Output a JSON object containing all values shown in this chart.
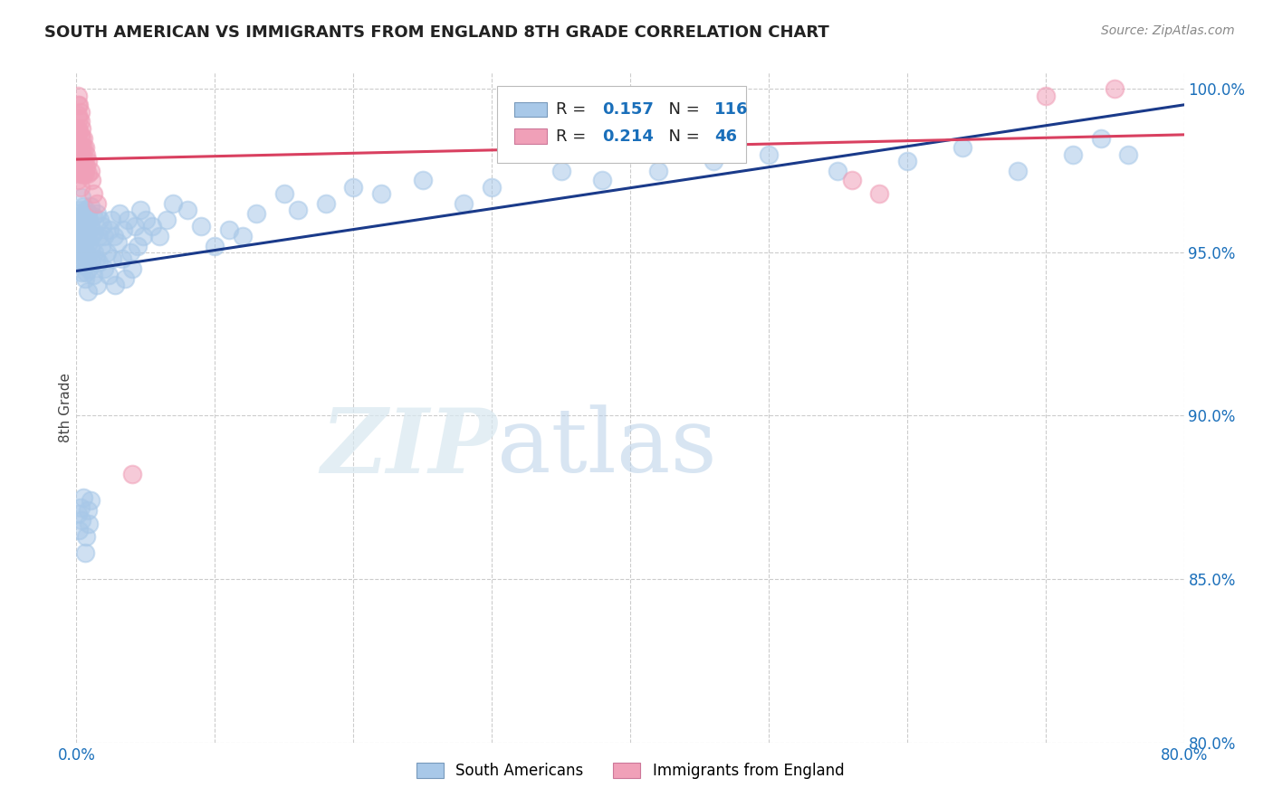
{
  "title": "SOUTH AMERICAN VS IMMIGRANTS FROM ENGLAND 8TH GRADE CORRELATION CHART",
  "source": "Source: ZipAtlas.com",
  "ylabel": "8th Grade",
  "xlim": [
    0.0,
    0.8
  ],
  "ylim": [
    0.8,
    1.005
  ],
  "x_ticks": [
    0.0,
    0.1,
    0.2,
    0.3,
    0.4,
    0.5,
    0.6,
    0.7,
    0.8
  ],
  "y_ticks": [
    0.8,
    0.85,
    0.9,
    0.95,
    1.0
  ],
  "y_tick_labels": [
    "80.0%",
    "85.0%",
    "90.0%",
    "95.0%",
    "100.0%"
  ],
  "blue_R": 0.157,
  "blue_N": 116,
  "pink_R": 0.214,
  "pink_N": 46,
  "blue_color": "#a8c8e8",
  "pink_color": "#f0a0b8",
  "blue_line_color": "#1a3a8a",
  "pink_line_color": "#d94060",
  "legend_R_color": "#1a6fba",
  "background_color": "#ffffff",
  "watermark_zip": "ZIP",
  "watermark_atlas": "atlas",
  "blue_scatter_x": [
    0.001,
    0.001,
    0.002,
    0.002,
    0.002,
    0.003,
    0.003,
    0.003,
    0.003,
    0.003,
    0.004,
    0.004,
    0.004,
    0.004,
    0.004,
    0.004,
    0.005,
    0.005,
    0.005,
    0.005,
    0.005,
    0.005,
    0.006,
    0.006,
    0.006,
    0.006,
    0.007,
    0.007,
    0.007,
    0.007,
    0.008,
    0.008,
    0.008,
    0.008,
    0.009,
    0.009,
    0.009,
    0.01,
    0.01,
    0.01,
    0.011,
    0.011,
    0.012,
    0.012,
    0.013,
    0.013,
    0.014,
    0.015,
    0.015,
    0.016,
    0.016,
    0.017,
    0.018,
    0.019,
    0.02,
    0.02,
    0.022,
    0.023,
    0.024,
    0.025,
    0.026,
    0.027,
    0.028,
    0.03,
    0.031,
    0.033,
    0.034,
    0.035,
    0.037,
    0.039,
    0.04,
    0.042,
    0.044,
    0.046,
    0.048,
    0.05,
    0.055,
    0.06,
    0.065,
    0.07,
    0.08,
    0.09,
    0.1,
    0.11,
    0.12,
    0.13,
    0.15,
    0.16,
    0.18,
    0.2,
    0.22,
    0.25,
    0.28,
    0.3,
    0.35,
    0.38,
    0.42,
    0.46,
    0.5,
    0.55,
    0.6,
    0.64,
    0.68,
    0.72,
    0.74,
    0.76,
    0.001,
    0.002,
    0.003,
    0.004,
    0.005,
    0.006,
    0.007,
    0.008,
    0.009,
    0.01
  ],
  "blue_scatter_y": [
    0.952,
    0.958,
    0.955,
    0.948,
    0.962,
    0.96,
    0.953,
    0.947,
    0.956,
    0.963,
    0.959,
    0.951,
    0.944,
    0.967,
    0.955,
    0.961,
    0.95,
    0.946,
    0.957,
    0.964,
    0.953,
    0.96,
    0.955,
    0.948,
    0.961,
    0.942,
    0.95,
    0.957,
    0.944,
    0.963,
    0.956,
    0.949,
    0.962,
    0.938,
    0.953,
    0.96,
    0.945,
    0.958,
    0.951,
    0.964,
    0.955,
    0.947,
    0.961,
    0.943,
    0.956,
    0.95,
    0.948,
    0.962,
    0.94,
    0.955,
    0.947,
    0.96,
    0.952,
    0.958,
    0.955,
    0.945,
    0.95,
    0.943,
    0.957,
    0.96,
    0.948,
    0.955,
    0.94,
    0.953,
    0.962,
    0.948,
    0.957,
    0.942,
    0.96,
    0.95,
    0.945,
    0.958,
    0.952,
    0.963,
    0.955,
    0.96,
    0.958,
    0.955,
    0.96,
    0.965,
    0.963,
    0.958,
    0.952,
    0.957,
    0.955,
    0.962,
    0.968,
    0.963,
    0.965,
    0.97,
    0.968,
    0.972,
    0.965,
    0.97,
    0.975,
    0.972,
    0.975,
    0.978,
    0.98,
    0.975,
    0.978,
    0.982,
    0.975,
    0.98,
    0.985,
    0.98,
    0.87,
    0.865,
    0.872,
    0.868,
    0.875,
    0.858,
    0.863,
    0.871,
    0.867,
    0.874
  ],
  "pink_scatter_x": [
    0.001,
    0.001,
    0.001,
    0.001,
    0.001,
    0.001,
    0.001,
    0.001,
    0.002,
    0.002,
    0.002,
    0.002,
    0.002,
    0.002,
    0.003,
    0.003,
    0.003,
    0.003,
    0.003,
    0.003,
    0.003,
    0.004,
    0.004,
    0.004,
    0.004,
    0.004,
    0.005,
    0.005,
    0.005,
    0.005,
    0.006,
    0.006,
    0.006,
    0.007,
    0.007,
    0.008,
    0.008,
    0.01,
    0.011,
    0.012,
    0.015,
    0.04,
    0.7,
    0.75,
    0.56,
    0.58
  ],
  "pink_scatter_y": [
    0.998,
    0.995,
    0.992,
    0.988,
    0.984,
    0.98,
    0.976,
    0.972,
    0.995,
    0.991,
    0.987,
    0.983,
    0.979,
    0.975,
    0.993,
    0.99,
    0.986,
    0.982,
    0.978,
    0.974,
    0.97,
    0.988,
    0.985,
    0.982,
    0.978,
    0.974,
    0.985,
    0.982,
    0.978,
    0.974,
    0.982,
    0.978,
    0.974,
    0.98,
    0.976,
    0.978,
    0.974,
    0.975,
    0.972,
    0.968,
    0.965,
    0.882,
    0.998,
    1.0,
    0.972,
    0.968
  ]
}
